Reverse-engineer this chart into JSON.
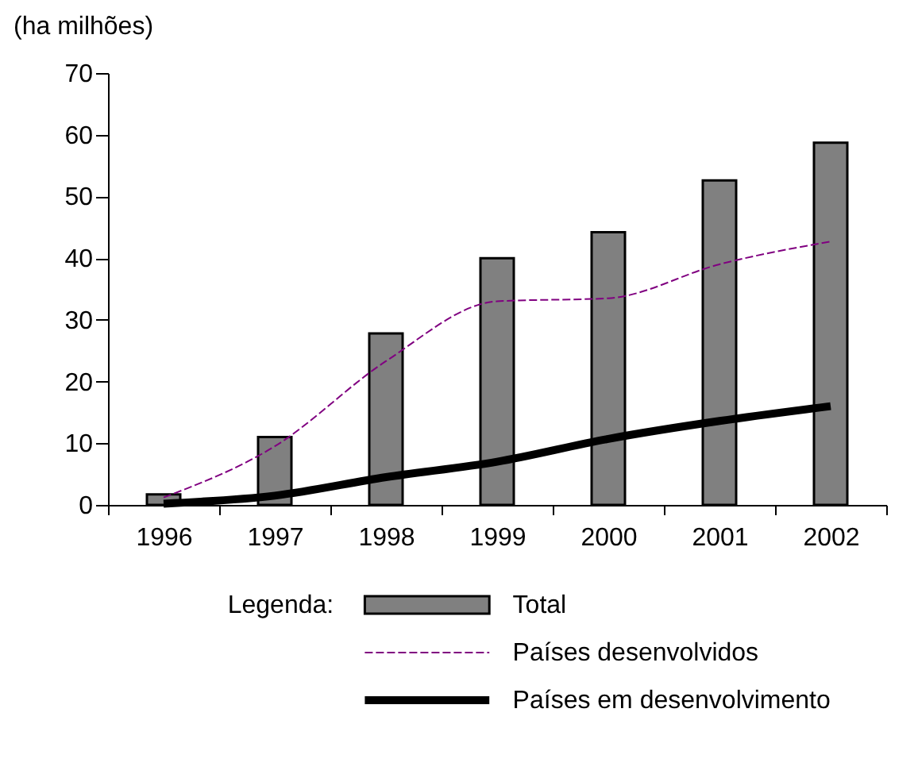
{
  "chart_data": {
    "type": "bar",
    "ylabel": "(ha milhões)",
    "legend_title": "Legenda:",
    "legend": "bottom",
    "grid": false,
    "categories": [
      "1996",
      "1997",
      "1998",
      "1999",
      "2000",
      "2001",
      "2002"
    ],
    "ylim": [
      0,
      70
    ],
    "yticks": [
      0,
      10,
      20,
      30,
      40,
      50,
      60,
      70
    ],
    "series": [
      {
        "name": "Total",
        "color": "#808080",
        "values": [
          1.7,
          11,
          27.8,
          40,
          44.2,
          52.6,
          58.7
        ]
      },
      {
        "name": "Países desenvolvidos",
        "type": "line",
        "line_style": "dashed",
        "color": "#800080",
        "values": [
          1.2,
          9.5,
          23.3,
          33,
          33.5,
          39,
          42.7
        ]
      },
      {
        "name": "Países em desenvolvimento",
        "type": "line",
        "line_style": "solid",
        "color": "#000000",
        "values": [
          0.2,
          1.5,
          4.5,
          7,
          10.7,
          13.6,
          16
        ]
      }
    ]
  }
}
